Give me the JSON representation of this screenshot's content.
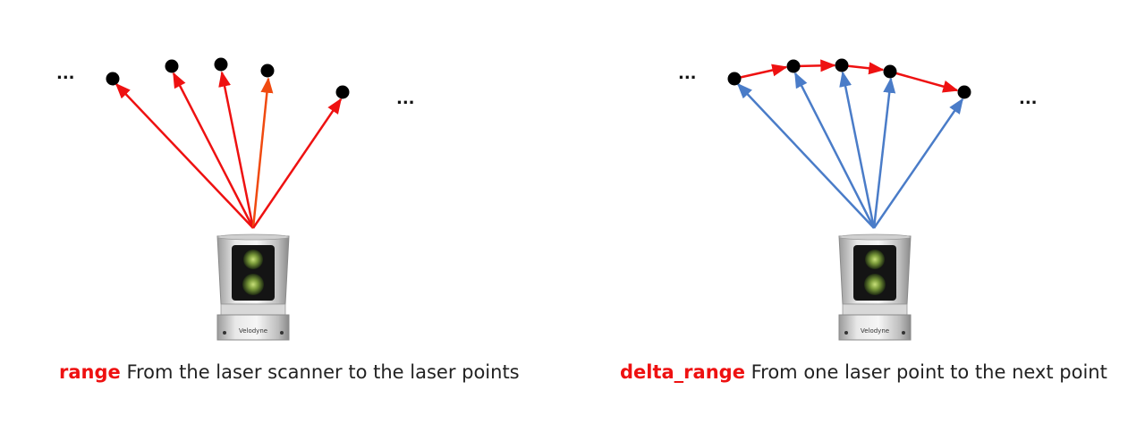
{
  "panels": [
    {
      "id": "left",
      "caption_term": "range",
      "caption_text": " From the laser scanner to the laser points",
      "ellipsis_left": "...",
      "ellipsis_right": "...",
      "scanner_brand": "Velodyne",
      "colors": {
        "rays": "#ee1111",
        "ray_highlight": "#f04a10",
        "links": "none",
        "points": "#000000",
        "term": "#ee1111"
      }
    },
    {
      "id": "right",
      "caption_term": "delta_range",
      "caption_text": " From one laser point to the next point",
      "ellipsis_left": "...",
      "ellipsis_right": "...",
      "scanner_brand": "Velodyne",
      "colors": {
        "rays": "#4a7cc8",
        "links": "#ee1111",
        "points": "#000000",
        "term": "#ee1111"
      }
    }
  ]
}
